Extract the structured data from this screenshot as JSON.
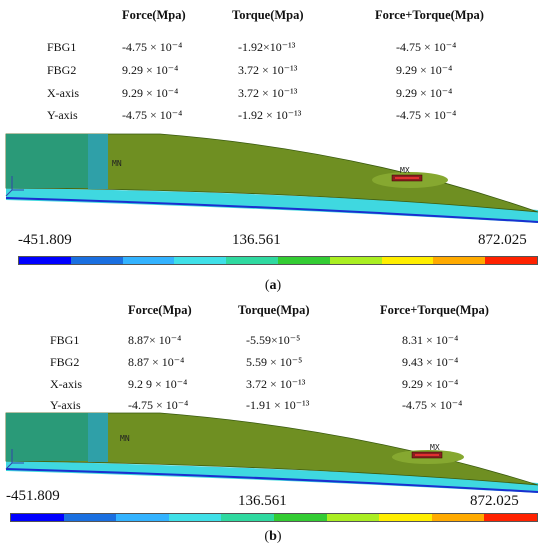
{
  "panels": [
    {
      "label": "a",
      "headers": [
        "Force(Mpa)",
        "Torque(Mpa)",
        "Force+Torque(Mpa)"
      ],
      "rows": [
        {
          "name": "FBG1",
          "values": [
            "-4.75 × 10⁻⁴",
            "-1.92×10⁻¹³",
            "-4.75 × 10⁻⁴"
          ]
        },
        {
          "name": "FBG2",
          "values": [
            "9.29 × 10⁻⁴",
            "3.72 × 10⁻¹³",
            "9.29 × 10⁻⁴"
          ]
        },
        {
          "name": "X-axis",
          "values": [
            "9.29 × 10⁻⁴",
            "3.72 × 10⁻¹³",
            "9.29 × 10⁻⁴"
          ]
        },
        {
          "name": "Y-axis",
          "values": [
            "-4.75 × 10⁻⁴",
            "-1.92 × 10⁻¹³",
            "-4.75 × 10⁻⁴"
          ]
        }
      ],
      "model_labels": {
        "min": "MN",
        "max": "MX"
      },
      "colorbar": {
        "min": "-451.809",
        "mid": "136.561",
        "max": "872.025"
      }
    },
    {
      "label": "b",
      "headers": [
        "Force(Mpa)",
        "Torque(Mpa)",
        "Force+Torque(Mpa)"
      ],
      "rows": [
        {
          "name": "FBG1",
          "values": [
            "8.87× 10⁻⁴",
            "-5.59×10⁻⁵",
            "8.31 × 10⁻⁴"
          ]
        },
        {
          "name": "FBG2",
          "values": [
            "8.87 × 10⁻⁴",
            "5.59 × 10⁻⁵",
            "9.43 × 10⁻⁴"
          ]
        },
        {
          "name": "X-axis",
          "values": [
            "9.2 9 × 10⁻⁴",
            "3.72 × 10⁻¹³",
            "9.29 × 10⁻⁴"
          ]
        },
        {
          "name": "Y-axis",
          "values": [
            "-4.75 × 10⁻⁴",
            "-1.91 × 10⁻¹³",
            "-4.75 × 10⁻⁴"
          ]
        }
      ],
      "model_labels": {
        "min": "MN",
        "max": "MX"
      },
      "colorbar": {
        "min": "-451.809",
        "mid": "136.561",
        "max": "872.025"
      }
    }
  ],
  "colorbar_colors": [
    "#0000ff",
    "#1a6fe0",
    "#33b3ff",
    "#3fe0e8",
    "#2fd9a0",
    "#33cc33",
    "#aaee22",
    "#ffee00",
    "#ffaa00",
    "#ff2200"
  ]
}
